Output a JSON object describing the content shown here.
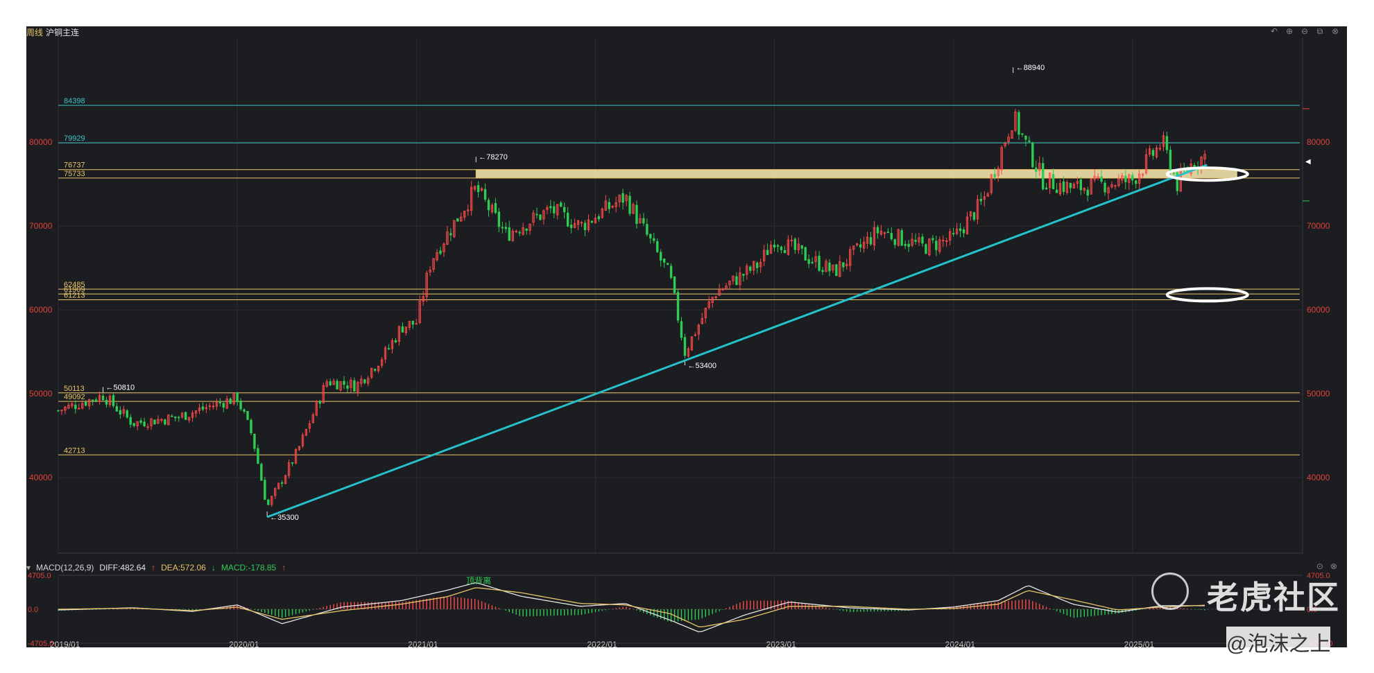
{
  "header": {
    "period": "周线",
    "symbol": "沪铜主连"
  },
  "toolbar": {
    "icons": [
      "undo-icon",
      "zoom-in-icon",
      "zoom-out-icon",
      "layout-icon",
      "close-icon"
    ]
  },
  "colors": {
    "up": "#ff4b4b",
    "down": "#2ecc52",
    "trend": "#25c2cc",
    "level_yellow": "#e9c46a",
    "level_cyan": "#3ec6c8",
    "band": "#ffedb3",
    "grid": "#2c2d33"
  },
  "chart_data": {
    "type": "candlestick",
    "x_tick_labels": [
      "2019/01",
      "2020/01",
      "2021/01",
      "2022/01",
      "2023/01",
      "2024/01",
      "2025/01"
    ],
    "y_tick_labels": [
      "40000",
      "50000",
      "60000",
      "70000",
      "80000"
    ],
    "ylim": [
      31000,
      92500
    ],
    "horizontal_levels": [
      {
        "value": 84398,
        "label": "84398",
        "color": "#3ec6c8"
      },
      {
        "value": 79929,
        "label": "79929",
        "color": "#3ec6c8"
      },
      {
        "value": 76737,
        "label": "76737",
        "color": "#e9c46a"
      },
      {
        "value": 75733,
        "label": "75733",
        "color": "#e9c46a"
      },
      {
        "value": 62485,
        "label": "62485",
        "color": "#e9c46a"
      },
      {
        "value": 61909,
        "label": "61909",
        "color": "#e9c46a"
      },
      {
        "value": 61213,
        "label": "61213",
        "color": "#e9c46a"
      },
      {
        "value": 50113,
        "label": "50113",
        "color": "#e9c46a"
      },
      {
        "value": 49092,
        "label": "49092",
        "color": "#e9c46a"
      },
      {
        "value": 42713,
        "label": "42713",
        "color": "#e9c46a"
      }
    ],
    "resistance_band": {
      "from": 75733,
      "to": 76737,
      "start": "2021/05",
      "end": "2025/08"
    },
    "trendline": {
      "from": {
        "x": "2020/03",
        "y": 35300
      },
      "to": {
        "x": "2025/06",
        "y": 77300
      }
    },
    "extremes": [
      {
        "x": "2019/04",
        "value": 50810,
        "label": "50810"
      },
      {
        "x": "2020/03",
        "value": 35300,
        "label": "35300"
      },
      {
        "x": "2021/05",
        "value": 78270,
        "label": "78270"
      },
      {
        "x": "2022/07",
        "value": 53400,
        "label": "53400"
      },
      {
        "x": "2024/05",
        "value": 88940,
        "label": "88940"
      }
    ],
    "highlights": [
      {
        "x": "2025/05",
        "value": 76200
      },
      {
        "x": "2025/05",
        "value": 61800
      }
    ],
    "price_path": [
      {
        "x": "2019/01",
        "value": 48000
      },
      {
        "x": "2019/04",
        "value": 49800
      },
      {
        "x": "2019/06",
        "value": 46500
      },
      {
        "x": "2019/09",
        "value": 47200
      },
      {
        "x": "2019/12",
        "value": 49000
      },
      {
        "x": "2020/01",
        "value": 49500
      },
      {
        "x": "2020/02",
        "value": 45000
      },
      {
        "x": "2020/03",
        "value": 36500
      },
      {
        "x": "2020/05",
        "value": 43000
      },
      {
        "x": "2020/07",
        "value": 51500
      },
      {
        "x": "2020/09",
        "value": 51000
      },
      {
        "x": "2020/11",
        "value": 55000
      },
      {
        "x": "2020/12",
        "value": 58000
      },
      {
        "x": "2021/01",
        "value": 58500
      },
      {
        "x": "2021/02",
        "value": 66000
      },
      {
        "x": "2021/05",
        "value": 74500
      },
      {
        "x": "2021/07",
        "value": 69000
      },
      {
        "x": "2021/10",
        "value": 72000
      },
      {
        "x": "2021/12",
        "value": 70000
      },
      {
        "x": "2022/03",
        "value": 73500
      },
      {
        "x": "2022/06",
        "value": 64000
      },
      {
        "x": "2022/07",
        "value": 55000
      },
      {
        "x": "2022/09",
        "value": 62000
      },
      {
        "x": "2022/12",
        "value": 65500
      },
      {
        "x": "2023/01",
        "value": 68500
      },
      {
        "x": "2023/05",
        "value": 64500
      },
      {
        "x": "2023/08",
        "value": 69500
      },
      {
        "x": "2023/11",
        "value": 67500
      },
      {
        "x": "2024/01",
        "value": 68500
      },
      {
        "x": "2024/03",
        "value": 73000
      },
      {
        "x": "2024/05",
        "value": 83000
      },
      {
        "x": "2024/07",
        "value": 75500
      },
      {
        "x": "2024/09",
        "value": 74500
      },
      {
        "x": "2024/11",
        "value": 75000
      },
      {
        "x": "2025/01",
        "value": 75500
      },
      {
        "x": "2025/03",
        "value": 80000
      },
      {
        "x": "2025/04",
        "value": 75000
      },
      {
        "x": "2025/05",
        "value": 77500
      },
      {
        "x": "2025/06",
        "value": 78500
      }
    ],
    "macd": {
      "title": "MACD(12,26,9)",
      "diff_label": "DIFF:482.64",
      "dea_label": "DEA:572.06",
      "macd_label": "MACD:-178.85",
      "arrow_up": "↑",
      "arrow_down": "↓",
      "y_tick_labels": [
        "4705.0",
        "0.0",
        "-4705.0"
      ],
      "ylim": [
        -4705,
        4705
      ],
      "annotation": "顶背离",
      "diff": [
        {
          "x": "2019/01",
          "value": -100
        },
        {
          "x": "2019/06",
          "value": 200
        },
        {
          "x": "2019/10",
          "value": -300
        },
        {
          "x": "2020/01",
          "value": 600
        },
        {
          "x": "2020/04",
          "value": -2000
        },
        {
          "x": "2020/08",
          "value": 300
        },
        {
          "x": "2020/12",
          "value": 1200
        },
        {
          "x": "2021/03",
          "value": 2600
        },
        {
          "x": "2021/05",
          "value": 3700
        },
        {
          "x": "2021/08",
          "value": 1800
        },
        {
          "x": "2021/12",
          "value": 400
        },
        {
          "x": "2022/03",
          "value": 800
        },
        {
          "x": "2022/06",
          "value": -1500
        },
        {
          "x": "2022/08",
          "value": -3200
        },
        {
          "x": "2022/11",
          "value": -800
        },
        {
          "x": "2023/02",
          "value": 1000
        },
        {
          "x": "2023/06",
          "value": 200
        },
        {
          "x": "2023/10",
          "value": -100
        },
        {
          "x": "2024/01",
          "value": 300
        },
        {
          "x": "2024/04",
          "value": 1200
        },
        {
          "x": "2024/06",
          "value": 3300
        },
        {
          "x": "2024/09",
          "value": 700
        },
        {
          "x": "2024/12",
          "value": -400
        },
        {
          "x": "2025/03",
          "value": 500
        },
        {
          "x": "2025/06",
          "value": 482.64
        }
      ],
      "dea": [
        {
          "x": "2019/01",
          "value": 0
        },
        {
          "x": "2019/06",
          "value": 150
        },
        {
          "x": "2019/10",
          "value": -200
        },
        {
          "x": "2020/01",
          "value": 300
        },
        {
          "x": "2020/04",
          "value": -1400
        },
        {
          "x": "2020/08",
          "value": -200
        },
        {
          "x": "2020/12",
          "value": 700
        },
        {
          "x": "2021/03",
          "value": 1700
        },
        {
          "x": "2021/05",
          "value": 3000
        },
        {
          "x": "2021/08",
          "value": 2300
        },
        {
          "x": "2021/12",
          "value": 800
        },
        {
          "x": "2022/03",
          "value": 600
        },
        {
          "x": "2022/06",
          "value": -600
        },
        {
          "x": "2022/08",
          "value": -2500
        },
        {
          "x": "2022/11",
          "value": -1400
        },
        {
          "x": "2023/02",
          "value": 400
        },
        {
          "x": "2023/06",
          "value": 400
        },
        {
          "x": "2023/10",
          "value": 0
        },
        {
          "x": "2024/01",
          "value": 100
        },
        {
          "x": "2024/04",
          "value": 700
        },
        {
          "x": "2024/06",
          "value": 2600
        },
        {
          "x": "2024/09",
          "value": 1300
        },
        {
          "x": "2024/12",
          "value": -100
        },
        {
          "x": "2025/03",
          "value": 300
        },
        {
          "x": "2025/06",
          "value": 572.06
        }
      ]
    }
  },
  "watermark": {
    "brand": "老虎社区",
    "user": "@泡沫之上"
  }
}
